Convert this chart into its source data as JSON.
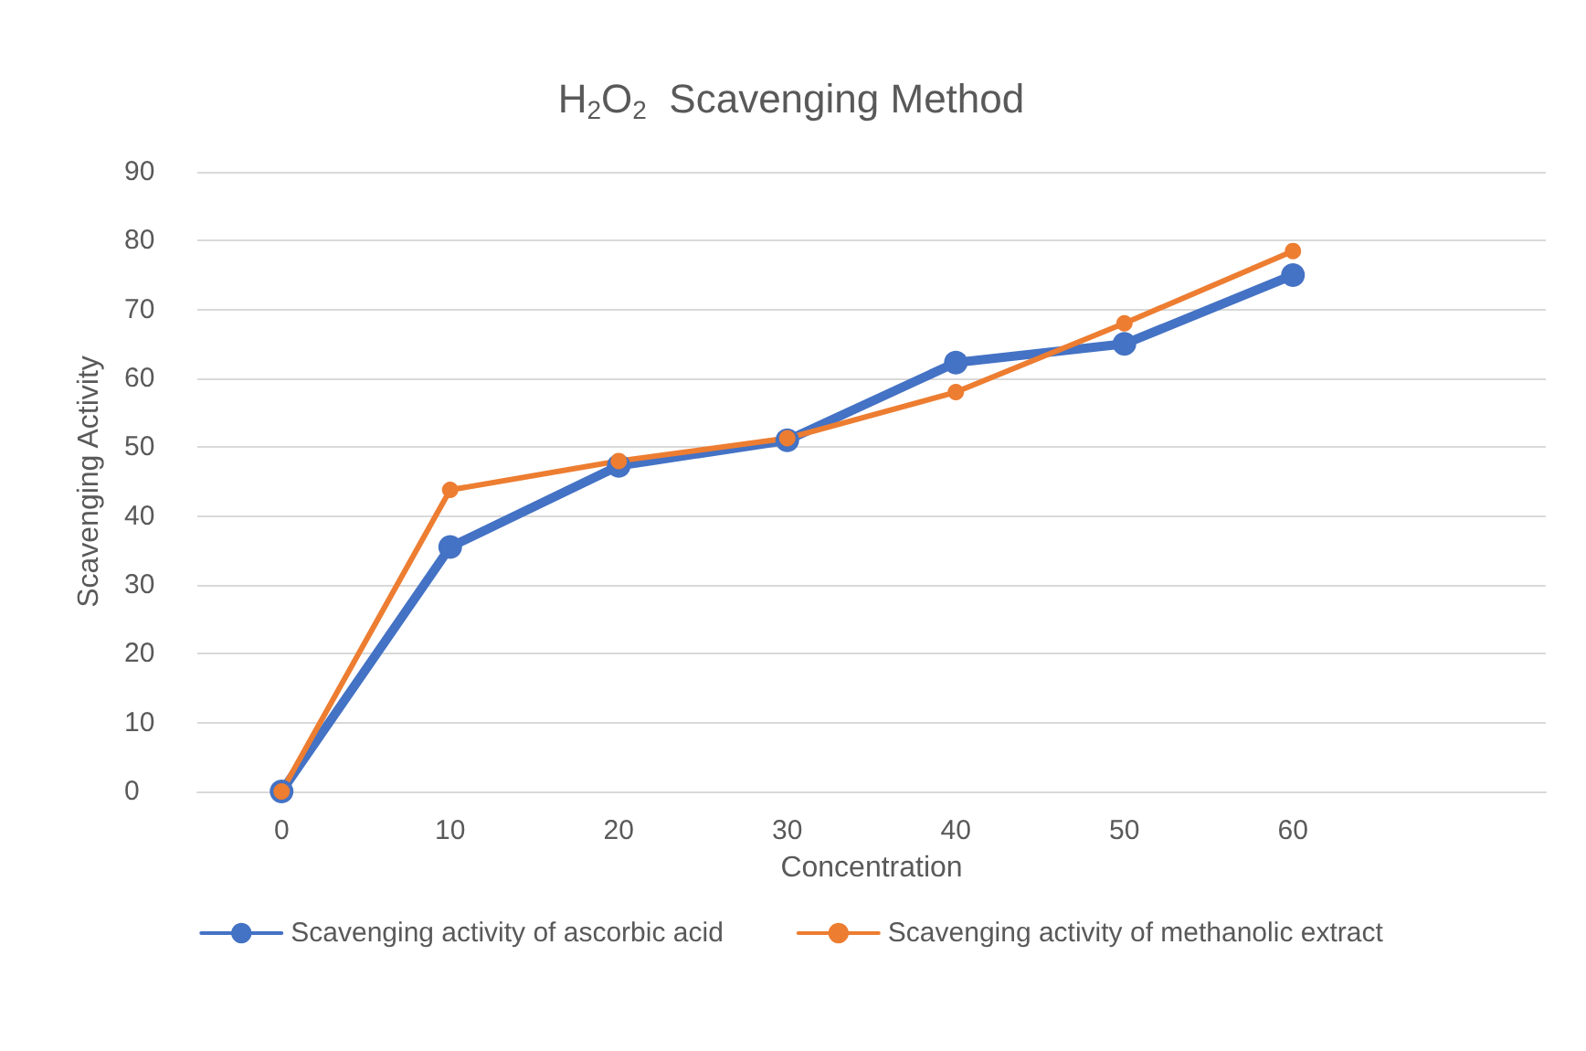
{
  "chart_data": {
    "type": "line",
    "title": "H$_{2}$O$_{2}$  Scavenging Method",
    "xlabel": "Concentration",
    "ylabel": "Scavenging Activity",
    "categories": [
      "0",
      "10",
      "20",
      "30",
      "40",
      "50",
      "60",
      null
    ],
    "series": [
      {
        "name": "Scavenging activity of ascorbic acid",
        "color": "#4472c4",
        "values": [
          0,
          35.5,
          47.3,
          51,
          62.3,
          65,
          75,
          null
        ]
      },
      {
        "name": "Scavenging activity of methanolic extract",
        "color": "#ed7d31",
        "values": [
          0,
          43.8,
          48,
          51.3,
          58,
          68,
          78.5,
          null
        ]
      }
    ],
    "ylim": [
      0,
      90
    ],
    "yticks": [
      0,
      10,
      20,
      30,
      40,
      50,
      60,
      70,
      80,
      90
    ],
    "grid": "y",
    "legend": "bottom",
    "marker": "circle",
    "line_style": "solid"
  }
}
